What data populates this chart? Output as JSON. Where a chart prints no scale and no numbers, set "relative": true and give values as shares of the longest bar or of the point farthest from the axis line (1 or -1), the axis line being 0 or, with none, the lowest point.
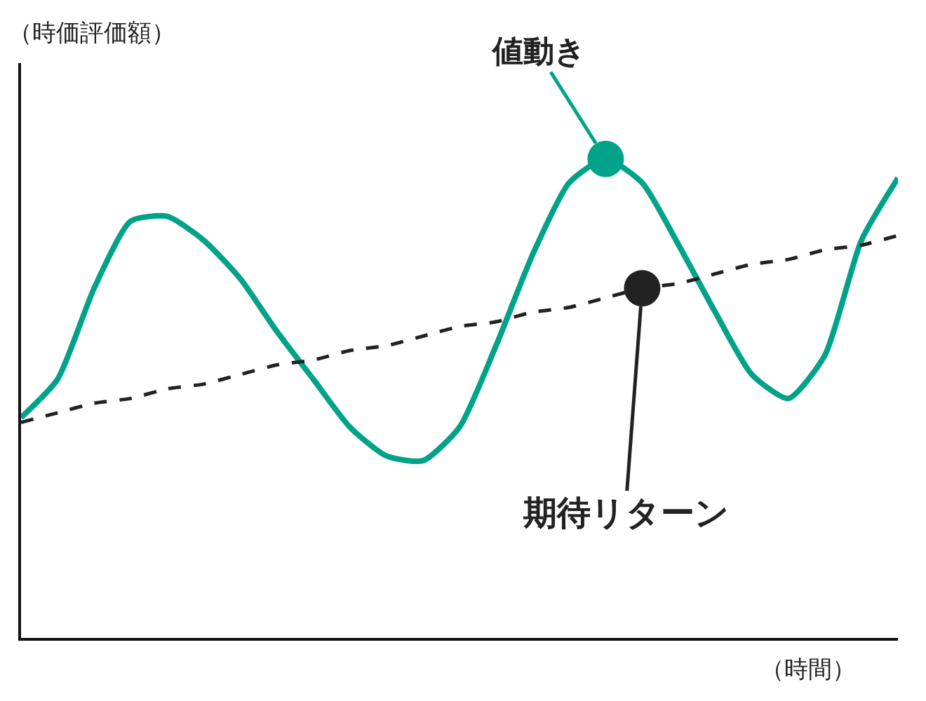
{
  "chart_data": {
    "type": "line",
    "relative": true,
    "xlabel": "（時間）",
    "categories": [
      null,
      null,
      null,
      null,
      null,
      null,
      null,
      null,
      null,
      null,
      null,
      null,
      null,
      null,
      null,
      null,
      null,
      null,
      null,
      null,
      null,
      null,
      null,
      null,
      null
    ],
    "series": [
      {
        "color": "#00a389",
        "line_style": "solid",
        "values": [
          0.46,
          0.54,
          0.73,
          0.87,
          0.88,
          0.83,
          0.75,
          0.64,
          0.54,
          0.44,
          0.38,
          0.37,
          0.44,
          0.61,
          0.8,
          0.95,
          1.0,
          0.95,
          0.82,
          0.68,
          0.55,
          0.5,
          0.59,
          0.83,
          0.96
        ]
      },
      {
        "color": "#222222",
        "line_style": "dashed",
        "values": [
          0.45,
          0.47,
          0.49,
          0.5,
          0.52,
          0.53,
          0.55,
          0.57,
          0.58,
          0.6,
          0.61,
          0.63,
          0.65,
          0.66,
          0.68,
          0.69,
          0.71,
          0.73,
          0.74,
          0.76,
          0.78,
          0.79,
          0.81,
          0.82,
          0.84
        ]
      }
    ],
    "annotations": [
      "値動き",
      "期待リターン",
      "（時価評価額）"
    ],
    "legend": false
  }
}
